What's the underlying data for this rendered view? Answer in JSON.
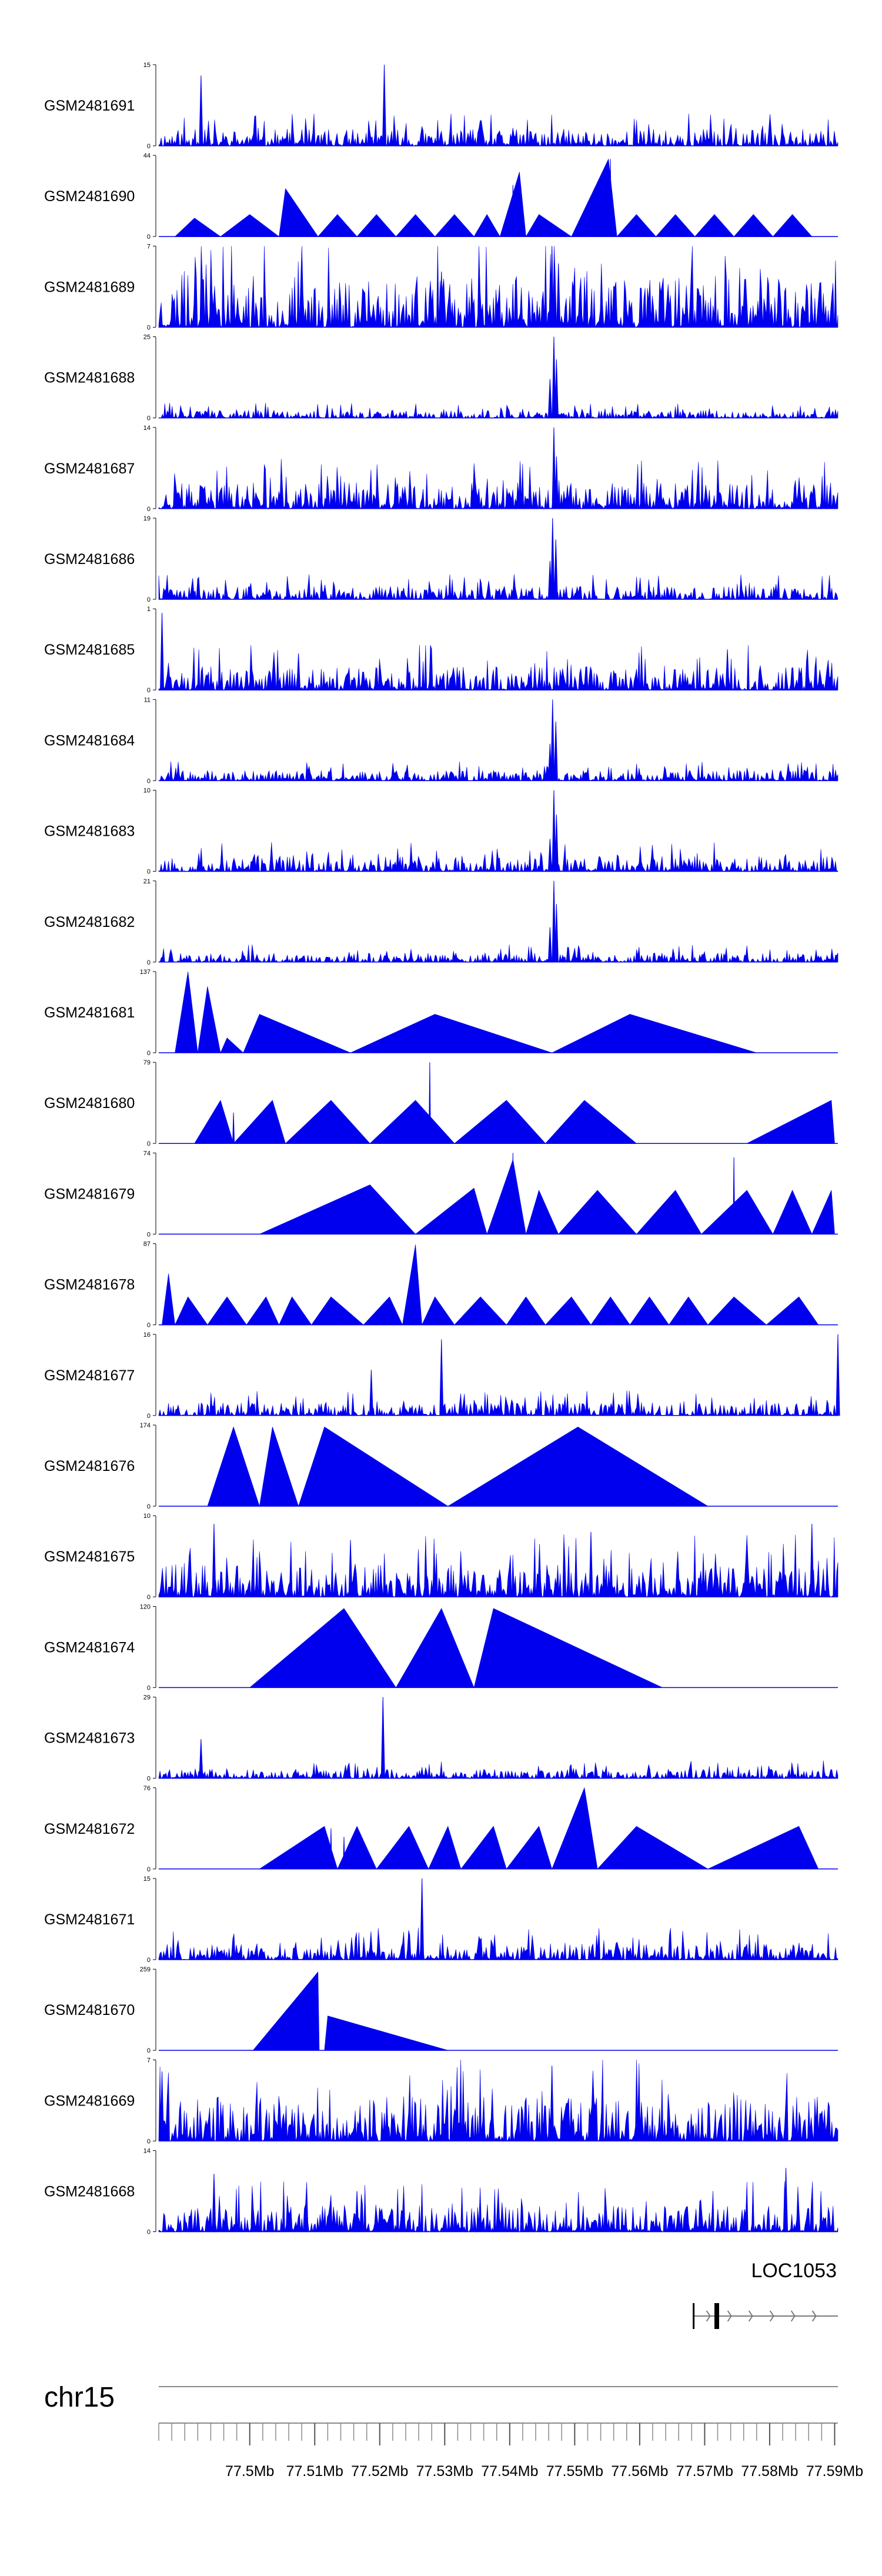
{
  "chart_data": {
    "type": "area",
    "title": "",
    "chromosome": "chr15",
    "gene_label": "LOC1053",
    "x_range_mb": [
      77.486,
      77.5905
    ],
    "x_ticks": [
      {
        "value": 77.5,
        "label": "77.5Mb"
      },
      {
        "value": 77.51,
        "label": "77.51Mb"
      },
      {
        "value": 77.52,
        "label": "77.52Mb"
      },
      {
        "value": 77.53,
        "label": "77.53Mb"
      },
      {
        "value": 77.54,
        "label": "77.54Mb"
      },
      {
        "value": 77.55,
        "label": "77.55Mb"
      },
      {
        "value": 77.56,
        "label": "77.56Mb"
      },
      {
        "value": 77.57,
        "label": "77.57Mb"
      },
      {
        "value": 77.58,
        "label": "77.58Mb"
      },
      {
        "value": 77.59,
        "label": "77.59Mb"
      }
    ],
    "gene_model": {
      "start": 77.5683,
      "end": 77.5905,
      "exon_start": 77.5715,
      "exon_end": 77.5722
    },
    "series_color": "#0000ee",
    "tracks": [
      {
        "name": "GSM2481691",
        "ymax": 15,
        "ymin_label": "0",
        "ymax_label": "15",
        "style": "dense",
        "seed": 11,
        "base": 0.13,
        "peaks": [
          [
            77.4925,
            13
          ],
          [
            77.5207,
            15
          ]
        ]
      },
      {
        "name": "GSM2481690",
        "ymax": 44,
        "ymin_label": "0",
        "ymax_label": "44",
        "style": "sparse",
        "points": [
          [
            77.4885,
            0
          ],
          [
            77.4915,
            10
          ],
          [
            77.4955,
            0
          ],
          [
            77.5,
            12
          ],
          [
            77.5045,
            0
          ],
          [
            77.5055,
            26
          ],
          [
            77.5105,
            0
          ],
          [
            77.5135,
            12
          ],
          [
            77.5165,
            0
          ],
          [
            77.5195,
            12
          ],
          [
            77.5225,
            0
          ],
          [
            77.5255,
            12
          ],
          [
            77.5285,
            0
          ],
          [
            77.5315,
            12
          ],
          [
            77.5345,
            0
          ],
          [
            77.5365,
            12
          ],
          [
            77.5385,
            0
          ],
          [
            77.5415,
            35
          ],
          [
            77.5425,
            0
          ],
          [
            77.5445,
            12
          ],
          [
            77.5495,
            0
          ],
          [
            77.5552,
            42
          ],
          [
            77.5565,
            0
          ],
          [
            77.5595,
            12
          ],
          [
            77.5625,
            0
          ],
          [
            77.5655,
            12
          ],
          [
            77.5685,
            0
          ],
          [
            77.5715,
            12
          ],
          [
            77.5745,
            0
          ],
          [
            77.5775,
            12
          ],
          [
            77.5805,
            0
          ],
          [
            77.5835,
            12
          ],
          [
            77.5865,
            0
          ]
        ],
        "peaks": [
          [
            77.5555,
            42
          ],
          [
            77.5405,
            28
          ]
        ]
      },
      {
        "name": "GSM2481689",
        "ymax": 7,
        "ymin_label": "0",
        "ymax_label": "7",
        "style": "dense",
        "seed": 23,
        "base": 0.4,
        "peaks": [
          [
            77.5465,
            7
          ],
          [
            77.5475,
            5.5
          ],
          [
            77.5295,
            4.8
          ]
        ]
      },
      {
        "name": "GSM2481688",
        "ymax": 25,
        "ymin_label": "0",
        "ymax_label": "25",
        "style": "dense",
        "seed": 31,
        "base": 0.06,
        "peaks": [
          [
            77.5468,
            25
          ],
          [
            77.5472,
            18
          ],
          [
            77.5462,
            12
          ]
        ]
      },
      {
        "name": "GSM2481687",
        "ymax": 14,
        "ymin_label": "0",
        "ymax_label": "14",
        "style": "dense",
        "seed": 37,
        "base": 0.2,
        "peaks": [
          [
            77.5468,
            14
          ],
          [
            77.5472,
            9
          ]
        ]
      },
      {
        "name": "GSM2481686",
        "ymax": 19,
        "ymin_label": "0",
        "ymax_label": "19",
        "style": "dense",
        "seed": 41,
        "base": 0.1,
        "peaks": [
          [
            77.5466,
            19
          ],
          [
            77.5471,
            14
          ],
          [
            77.5462,
            9
          ]
        ]
      },
      {
        "name": "GSM2481685",
        "ymax": 1,
        "ymin_label": "0",
        "ymax_label": "1",
        "style": "dense",
        "seed": 43,
        "base": 0.18,
        "peaks": [
          [
            77.4865,
            0.95
          ],
          [
            77.5075,
            0.45
          ],
          [
            77.5735,
            0.5
          ]
        ]
      },
      {
        "name": "GSM2481684",
        "ymax": 11,
        "ymin_label": "0",
        "ymax_label": "11",
        "style": "dense",
        "seed": 47,
        "base": 0.08,
        "peaks": [
          [
            77.5466,
            11
          ],
          [
            77.5471,
            8
          ],
          [
            77.5462,
            5
          ]
        ]
      },
      {
        "name": "GSM2481683",
        "ymax": 10,
        "ymin_label": "0",
        "ymax_label": "10",
        "style": "dense",
        "seed": 53,
        "base": 0.12,
        "peaks": [
          [
            77.5468,
            10
          ],
          [
            77.5472,
            7
          ],
          [
            77.5462,
            4
          ]
        ]
      },
      {
        "name": "GSM2481682",
        "ymax": 21,
        "ymin_label": "0",
        "ymax_label": "21",
        "style": "dense",
        "seed": 59,
        "base": 0.07,
        "peaks": [
          [
            77.5468,
            21
          ],
          [
            77.5472,
            15
          ],
          [
            77.5462,
            9
          ]
        ]
      },
      {
        "name": "GSM2481681",
        "ymax": 137,
        "ymin_label": "0",
        "ymax_label": "137",
        "style": "sparse",
        "points": [
          [
            77.4885,
            0
          ],
          [
            77.4905,
            137
          ],
          [
            77.492,
            0
          ],
          [
            77.4935,
            112
          ],
          [
            77.4955,
            0
          ],
          [
            77.4965,
            25
          ],
          [
            77.499,
            0
          ],
          [
            77.5015,
            65
          ],
          [
            77.5155,
            0
          ],
          [
            77.5285,
            65
          ],
          [
            77.5465,
            0
          ],
          [
            77.5585,
            65
          ],
          [
            77.578,
            0
          ]
        ],
        "peaks": []
      },
      {
        "name": "GSM2481680",
        "ymax": 79,
        "ymin_label": "0",
        "ymax_label": "79",
        "style": "sparse",
        "points": [
          [
            77.4915,
            0
          ],
          [
            77.4955,
            42
          ],
          [
            77.4975,
            0
          ],
          [
            77.5035,
            42
          ],
          [
            77.5055,
            0
          ],
          [
            77.5125,
            42
          ],
          [
            77.5185,
            0
          ],
          [
            77.5255,
            42
          ],
          [
            77.5315,
            0
          ],
          [
            77.5395,
            42
          ],
          [
            77.5455,
            0
          ],
          [
            77.5515,
            42
          ],
          [
            77.5595,
            0
          ],
          [
            77.5765,
            0
          ],
          [
            77.5895,
            42
          ],
          [
            77.59,
            0
          ]
        ],
        "peaks": [
          [
            77.4975,
            30
          ],
          [
            77.5277,
            79
          ]
        ]
      },
      {
        "name": "GSM2481679",
        "ymax": 74,
        "ymin_label": "0",
        "ymax_label": "74",
        "style": "sparse",
        "points": [
          [
            77.5015,
            0
          ],
          [
            77.5185,
            45
          ],
          [
            77.5255,
            0
          ],
          [
            77.5345,
            42
          ],
          [
            77.5365,
            0
          ],
          [
            77.5405,
            68
          ],
          [
            77.5425,
            0
          ],
          [
            77.5445,
            40
          ],
          [
            77.5475,
            0
          ],
          [
            77.5535,
            40
          ],
          [
            77.5595,
            0
          ],
          [
            77.5655,
            40
          ],
          [
            77.5695,
            0
          ],
          [
            77.5765,
            40
          ],
          [
            77.5805,
            0
          ],
          [
            77.5835,
            40
          ],
          [
            77.5865,
            0
          ],
          [
            77.5895,
            40
          ],
          [
            77.59,
            0
          ]
        ],
        "peaks": [
          [
            77.5745,
            70
          ],
          [
            77.5405,
            74
          ]
        ]
      },
      {
        "name": "GSM2481678",
        "ymax": 87,
        "ymin_label": "0",
        "ymax_label": "87",
        "style": "sparse",
        "points": [
          [
            77.4865,
            0
          ],
          [
            77.4875,
            55
          ],
          [
            77.4885,
            0
          ],
          [
            77.4905,
            30
          ],
          [
            77.4935,
            0
          ],
          [
            77.4965,
            30
          ],
          [
            77.4995,
            0
          ],
          [
            77.5025,
            30
          ],
          [
            77.5045,
            0
          ],
          [
            77.5065,
            30
          ],
          [
            77.5095,
            0
          ],
          [
            77.5125,
            30
          ],
          [
            77.5175,
            0
          ],
          [
            77.5215,
            30
          ],
          [
            77.5235,
            0
          ],
          [
            77.5255,
            86
          ],
          [
            77.5265,
            0
          ],
          [
            77.5285,
            30
          ],
          [
            77.5315,
            0
          ],
          [
            77.5355,
            30
          ],
          [
            77.5395,
            0
          ],
          [
            77.5425,
            30
          ],
          [
            77.5455,
            0
          ],
          [
            77.5495,
            30
          ],
          [
            77.5525,
            0
          ],
          [
            77.5555,
            30
          ],
          [
            77.5585,
            0
          ],
          [
            77.5615,
            30
          ],
          [
            77.5645,
            0
          ],
          [
            77.5675,
            30
          ],
          [
            77.5705,
            0
          ],
          [
            77.5745,
            30
          ],
          [
            77.5795,
            0
          ],
          [
            77.5845,
            30
          ],
          [
            77.5875,
            0
          ]
        ],
        "peaks": []
      },
      {
        "name": "GSM2481677",
        "ymax": 16,
        "ymin_label": "0",
        "ymax_label": "16",
        "style": "dense",
        "seed": 67,
        "base": 0.1,
        "peaks": [
          [
            77.5295,
            15
          ],
          [
            77.5187,
            9
          ],
          [
            77.5905,
            16
          ]
        ]
      },
      {
        "name": "GSM2481676",
        "ymax": 174,
        "ymin_label": "0",
        "ymax_label": "174",
        "style": "sparse",
        "points": [
          [
            77.4935,
            0
          ],
          [
            77.4975,
            170
          ],
          [
            77.5015,
            0
          ],
          [
            77.5035,
            170
          ],
          [
            77.5075,
            0
          ],
          [
            77.5115,
            170
          ],
          [
            77.5305,
            0
          ],
          [
            77.5505,
            170
          ],
          [
            77.5705,
            0
          ]
        ],
        "peaks": []
      },
      {
        "name": "GSM2481675",
        "ymax": 10,
        "ymin_label": "0",
        "ymax_label": "10",
        "style": "dense",
        "seed": 71,
        "base": 0.25,
        "peaks": [
          [
            77.4945,
            9
          ],
          [
            77.5525,
            8
          ],
          [
            77.5865,
            9
          ],
          [
            77.5155,
            7
          ]
        ]
      },
      {
        "name": "GSM2481674",
        "ymax": 120,
        "ymin_label": "0",
        "ymax_label": "120",
        "style": "sparse",
        "points": [
          [
            77.5,
            0
          ],
          [
            77.5145,
            117
          ],
          [
            77.5225,
            0
          ],
          [
            77.5295,
            117
          ],
          [
            77.5345,
            0
          ],
          [
            77.5375,
            117
          ],
          [
            77.5635,
            0
          ]
        ],
        "peaks": []
      },
      {
        "name": "GSM2481673",
        "ymax": 29,
        "ymin_label": "0",
        "ymax_label": "29",
        "style": "dense",
        "seed": 79,
        "base": 0.07,
        "peaks": [
          [
            77.5205,
            29
          ],
          [
            77.4925,
            14
          ]
        ]
      },
      {
        "name": "GSM2481672",
        "ymax": 76,
        "ymin_label": "0",
        "ymax_label": "76",
        "style": "sparse",
        "points": [
          [
            77.5015,
            0
          ],
          [
            77.5115,
            40
          ],
          [
            77.5135,
            0
          ],
          [
            77.5165,
            40
          ],
          [
            77.5195,
            0
          ],
          [
            77.5245,
            40
          ],
          [
            77.5275,
            0
          ],
          [
            77.5305,
            40
          ],
          [
            77.5325,
            0
          ],
          [
            77.5375,
            40
          ],
          [
            77.5395,
            0
          ],
          [
            77.5445,
            40
          ],
          [
            77.5465,
            0
          ],
          [
            77.5515,
            76
          ],
          [
            77.5535,
            0
          ],
          [
            77.5595,
            40
          ],
          [
            77.5705,
            0
          ],
          [
            77.5845,
            40
          ],
          [
            77.5875,
            0
          ]
        ],
        "peaks": [
          [
            77.5125,
            38
          ],
          [
            77.5145,
            30
          ]
        ]
      },
      {
        "name": "GSM2481671",
        "ymax": 15,
        "ymin_label": "0",
        "ymax_label": "15",
        "style": "dense",
        "seed": 83,
        "base": 0.13,
        "peaks": [
          [
            77.5265,
            15
          ]
        ]
      },
      {
        "name": "GSM2481670",
        "ymax": 259,
        "ymin_label": "0",
        "ymax_label": "259",
        "style": "sparse",
        "points": [
          [
            77.5005,
            0
          ],
          [
            77.5105,
            250
          ],
          [
            77.5107,
            0
          ],
          [
            77.5115,
            0
          ],
          [
            77.512,
            110
          ],
          [
            77.5305,
            0
          ]
        ],
        "peaks": []
      },
      {
        "name": "GSM2481669",
        "ymax": 7,
        "ymin_label": "0",
        "ymax_label": "7",
        "style": "dense",
        "seed": 89,
        "base": 0.35,
        "peaks": [
          [
            77.5465,
            6.5
          ],
          [
            77.4865,
            6
          ]
        ]
      },
      {
        "name": "GSM2481668",
        "ymax": 14,
        "ymin_label": "0",
        "ymax_label": "14",
        "style": "dense",
        "seed": 97,
        "base": 0.2,
        "peaks": [
          [
            77.5825,
            11
          ],
          [
            77.4945,
            10
          ],
          [
            77.5165,
            7
          ]
        ]
      }
    ]
  }
}
